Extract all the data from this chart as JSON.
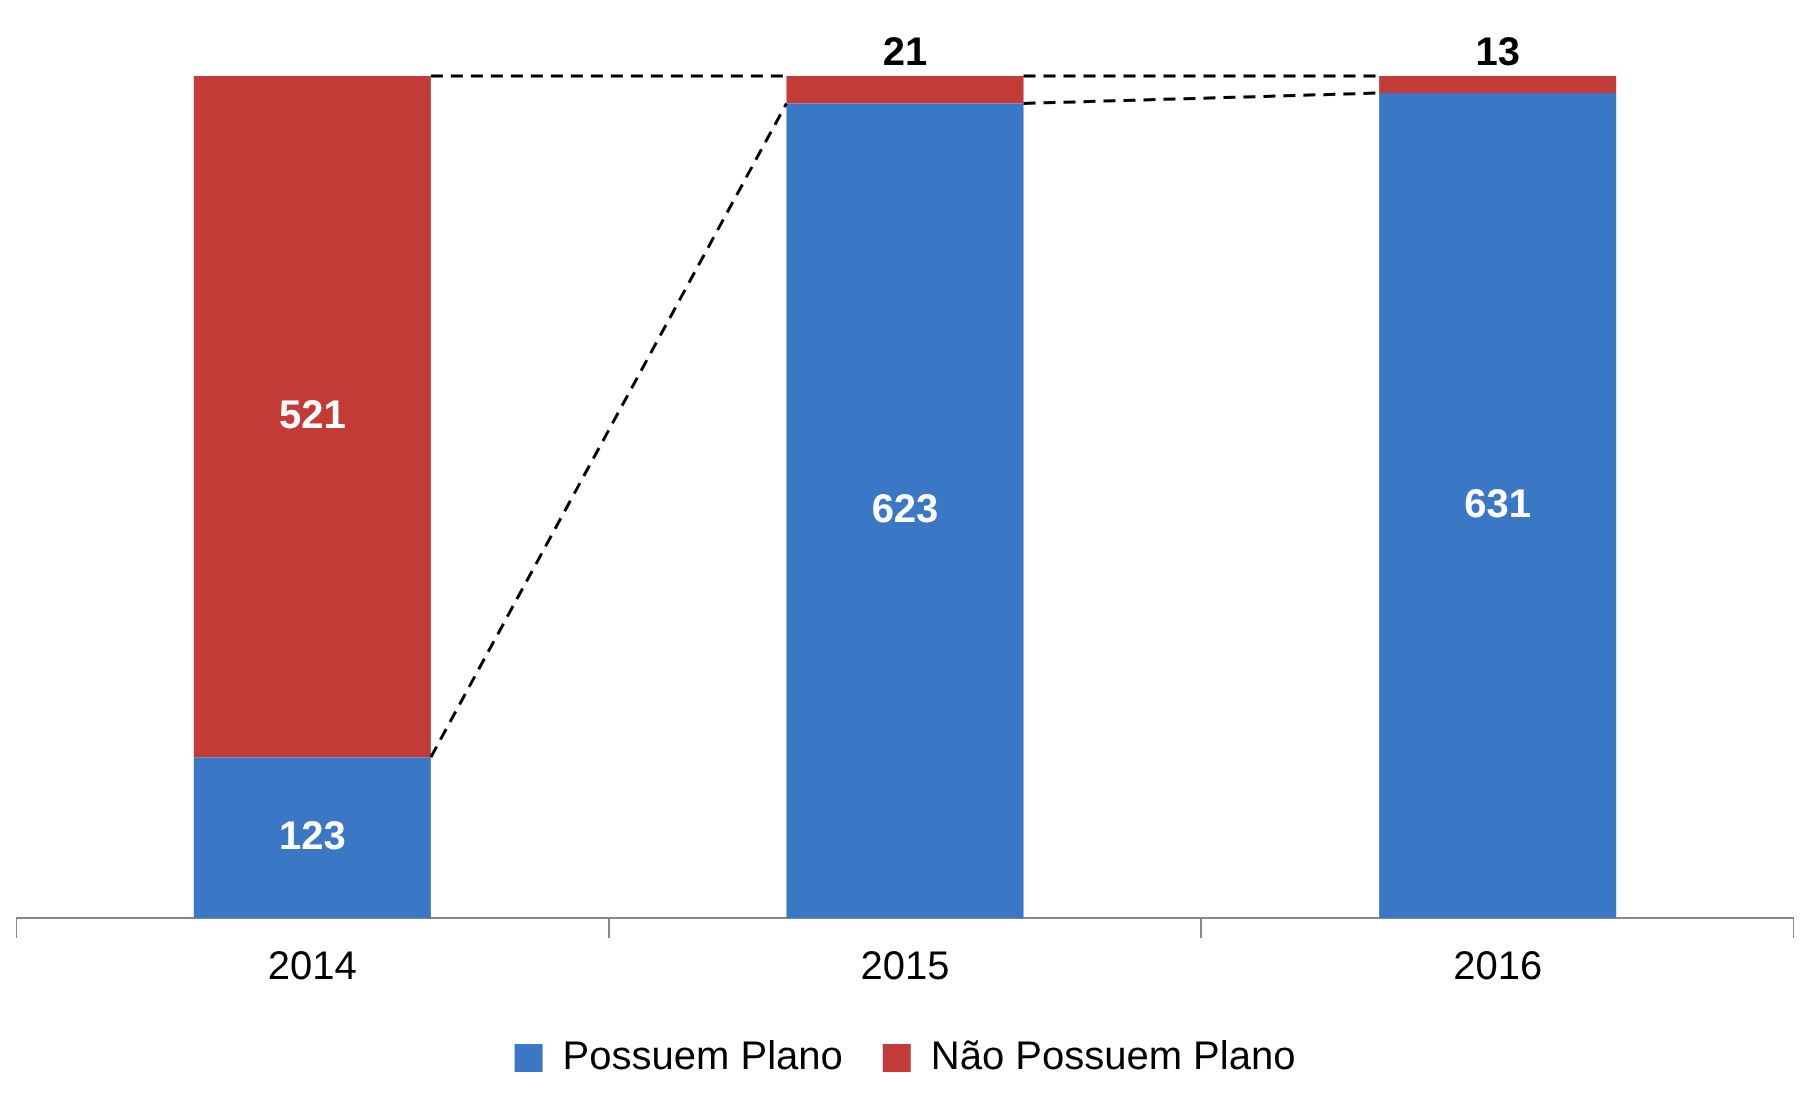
{
  "chart_data": {
    "type": "bar",
    "stacked": true,
    "categories": [
      "2014",
      "2015",
      "2016"
    ],
    "series": [
      {
        "name": "Possuem Plano",
        "color": "#3a78c6",
        "values": [
          123,
          623,
          631
        ]
      },
      {
        "name": "Não Possuem Plano",
        "color": "#c33b37",
        "values": [
          521,
          21,
          13
        ]
      }
    ],
    "data_labels": true,
    "legend": "bottom"
  }
}
